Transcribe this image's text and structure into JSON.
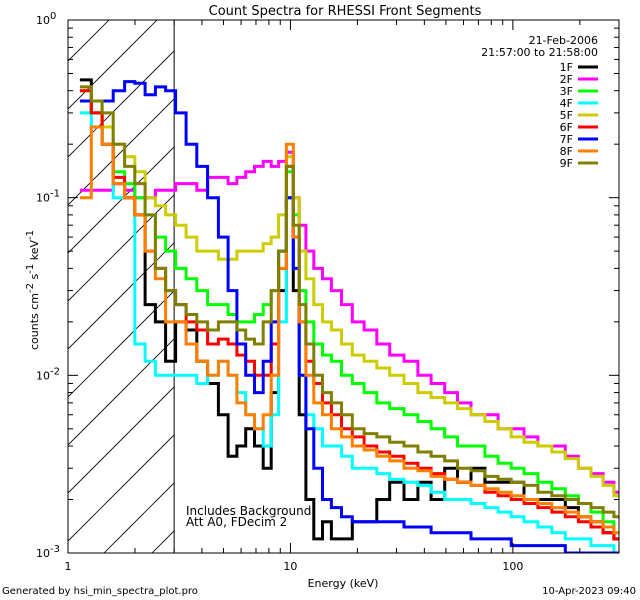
{
  "chart_data": {
    "type": "line",
    "title": "Count Spectra for RHESSI Front Segments",
    "xlabel": "Energy (keV)",
    "ylabel_text": "counts cm",
    "ylabel_sup1": "-2",
    "ylabel_mid": " s",
    "ylabel_sup2": "-1",
    "ylabel_tail": " keV",
    "ylabel_sup3": "-1",
    "xscale": "log",
    "yscale": "log",
    "xlim": [
      1,
      300
    ],
    "ylim": [
      0.001,
      1
    ],
    "x_ticks": [
      {
        "value": 1,
        "label": "1"
      },
      {
        "value": 10,
        "label": "10"
      },
      {
        "value": 100,
        "label": "100"
      }
    ],
    "y_ticks": [
      {
        "value": 1,
        "base": "10",
        "exp": "0"
      },
      {
        "value": 0.1,
        "base": "10",
        "exp": "-1"
      },
      {
        "value": 0.01,
        "base": "10",
        "exp": "-2"
      },
      {
        "value": 0.001,
        "base": "10",
        "exp": "-3"
      }
    ],
    "grid": false,
    "legend_position": "top-right",
    "info_date": "21-Feb-2006",
    "info_time": "21:57:00 to 21:58:00",
    "attenuator_boundary_keV": 3,
    "annotation_line1": "Includes Background",
    "annotation_line2": "Att A0, FDecim 2",
    "energy_bins": [
      1.2,
      1.35,
      1.5,
      1.7,
      1.9,
      2.1,
      2.35,
      2.6,
      2.9,
      3.2,
      3.6,
      4.0,
      4.5,
      5.0,
      5.5,
      6.0,
      6.6,
      7.2,
      7.9,
      8.5,
      9.2,
      10.0,
      10.6,
      11.3,
      12.2,
      13.3,
      14.6,
      16.0,
      18.0,
      20.0,
      23.0,
      26.0,
      30.0,
      35.0,
      40.0,
      46.0,
      53.0,
      60.0,
      70.0,
      80.0,
      92.0,
      105.0,
      120.0,
      140.0,
      160.0,
      185.0,
      210.0,
      240.0,
      270.0,
      300.0
    ],
    "series": [
      {
        "name": "1F",
        "color": "#000000",
        "values": [
          0.46,
          0.3,
          0.2,
          0.12,
          0.1,
          0.08,
          0.025,
          0.02,
          0.012,
          0.02,
          0.018,
          0.012,
          0.009,
          0.006,
          0.0035,
          0.004,
          0.005,
          0.004,
          0.003,
          0.008,
          0.03,
          0.1,
          0.03,
          0.006,
          0.002,
          0.0012,
          0.0015,
          0.0012,
          0.0012,
          0.0015,
          0.0015,
          0.002,
          0.0025,
          0.002,
          0.0025,
          0.002,
          0.003,
          0.0025,
          0.003,
          0.0025,
          0.0025,
          0.0025,
          0.002,
          0.002,
          0.002,
          0.0018,
          0.0016,
          0.0015,
          0.0013,
          0.0012
        ]
      },
      {
        "name": "2F",
        "color": "#ff00ff",
        "values": [
          0.11,
          0.11,
          0.11,
          0.12,
          0.11,
          0.1,
          0.1,
          0.11,
          0.11,
          0.12,
          0.12,
          0.11,
          0.13,
          0.13,
          0.12,
          0.13,
          0.14,
          0.15,
          0.16,
          0.15,
          0.16,
          0.18,
          0.1,
          0.07,
          0.05,
          0.04,
          0.035,
          0.03,
          0.025,
          0.02,
          0.018,
          0.015,
          0.013,
          0.012,
          0.01,
          0.009,
          0.008,
          0.007,
          0.006,
          0.006,
          0.005,
          0.005,
          0.0045,
          0.004,
          0.004,
          0.0035,
          0.003,
          0.0028,
          0.0025,
          0.0022
        ]
      },
      {
        "name": "3F",
        "color": "#00ff00",
        "values": [
          0.4,
          0.3,
          0.2,
          0.14,
          0.12,
          0.1,
          0.08,
          0.06,
          0.05,
          0.04,
          0.035,
          0.03,
          0.025,
          0.025,
          0.022,
          0.02,
          0.02,
          0.022,
          0.025,
          0.03,
          0.05,
          0.14,
          0.08,
          0.03,
          0.02,
          0.015,
          0.013,
          0.012,
          0.01,
          0.009,
          0.008,
          0.007,
          0.0065,
          0.006,
          0.0055,
          0.005,
          0.0045,
          0.004,
          0.004,
          0.0035,
          0.0032,
          0.003,
          0.0028,
          0.0025,
          0.0023,
          0.0021,
          0.0019,
          0.0017,
          0.0015,
          0.0013
        ]
      },
      {
        "name": "4F",
        "color": "#00ffff",
        "values": [
          0.3,
          0.25,
          0.2,
          0.1,
          0.1,
          0.015,
          0.012,
          0.01,
          0.01,
          0.01,
          0.01,
          0.009,
          0.01,
          0.012,
          0.01,
          0.008,
          0.006,
          0.005,
          0.004,
          0.006,
          0.02,
          0.1,
          0.04,
          0.01,
          0.006,
          0.005,
          0.004,
          0.004,
          0.0035,
          0.003,
          0.003,
          0.0028,
          0.0026,
          0.0025,
          0.0024,
          0.0022,
          0.002,
          0.002,
          0.0019,
          0.0018,
          0.0017,
          0.0016,
          0.0015,
          0.0014,
          0.0013,
          0.0012,
          0.0012,
          0.0011,
          0.0011,
          0.001
        ]
      },
      {
        "name": "5F",
        "color": "#cccc00",
        "values": [
          0.42,
          0.35,
          0.25,
          0.2,
          0.17,
          0.14,
          0.1,
          0.09,
          0.08,
          0.07,
          0.06,
          0.05,
          0.05,
          0.045,
          0.045,
          0.05,
          0.05,
          0.05,
          0.055,
          0.06,
          0.08,
          0.17,
          0.1,
          0.05,
          0.035,
          0.025,
          0.02,
          0.018,
          0.015,
          0.013,
          0.012,
          0.011,
          0.01,
          0.009,
          0.008,
          0.0075,
          0.007,
          0.0065,
          0.006,
          0.0055,
          0.005,
          0.0045,
          0.0042,
          0.004,
          0.0037,
          0.0034,
          0.003,
          0.0027,
          0.0024,
          0.0021
        ]
      },
      {
        "name": "6F",
        "color": "#ff0000",
        "values": [
          0.4,
          0.3,
          0.2,
          0.13,
          0.1,
          0.08,
          0.05,
          0.04,
          0.03,
          0.025,
          0.02,
          0.018,
          0.015,
          0.016,
          0.015,
          0.013,
          0.012,
          0.01,
          0.01,
          0.015,
          0.04,
          0.15,
          0.06,
          0.02,
          0.012,
          0.009,
          0.007,
          0.006,
          0.005,
          0.0045,
          0.004,
          0.0037,
          0.0035,
          0.0032,
          0.003,
          0.0028,
          0.0026,
          0.0025,
          0.0024,
          0.0022,
          0.0021,
          0.002,
          0.0019,
          0.0018,
          0.0017,
          0.0016,
          0.0015,
          0.0014,
          0.0013,
          0.0012
        ]
      },
      {
        "name": "7F",
        "color": "#0000ff",
        "values": [
          0.35,
          0.35,
          0.35,
          0.4,
          0.45,
          0.44,
          0.38,
          0.42,
          0.4,
          0.3,
          0.2,
          0.15,
          0.1,
          0.06,
          0.03,
          0.015,
          0.01,
          0.008,
          0.012,
          0.02,
          0.05,
          0.1,
          0.04,
          0.01,
          0.005,
          0.003,
          0.002,
          0.0018,
          0.0016,
          0.0015,
          0.0015,
          0.0015,
          0.0015,
          0.0014,
          0.0014,
          0.0013,
          0.0013,
          0.0013,
          0.0012,
          0.0012,
          0.0012,
          0.0011,
          0.0011,
          0.0011,
          0.0011,
          0.001,
          0.001,
          0.001,
          0.001,
          0.001
        ]
      },
      {
        "name": "8F",
        "color": "#ff8000",
        "values": [
          0.1,
          0.25,
          0.2,
          0.12,
          0.1,
          0.08,
          0.05,
          0.035,
          0.02,
          0.02,
          0.015,
          0.012,
          0.01,
          0.012,
          0.01,
          0.007,
          0.006,
          0.005,
          0.006,
          0.01,
          0.04,
          0.2,
          0.06,
          0.02,
          0.01,
          0.007,
          0.006,
          0.005,
          0.0045,
          0.004,
          0.0038,
          0.0035,
          0.0033,
          0.003,
          0.0029,
          0.0027,
          0.0026,
          0.0025,
          0.0024,
          0.0023,
          0.0022,
          0.0021,
          0.002,
          0.0019,
          0.0018,
          0.0017,
          0.0016,
          0.0015,
          0.0014,
          0.0013
        ]
      },
      {
        "name": "9F",
        "color": "#808000",
        "values": [
          0.42,
          0.35,
          0.3,
          0.2,
          0.15,
          0.12,
          0.08,
          0.04,
          0.03,
          0.025,
          0.022,
          0.02,
          0.018,
          0.02,
          0.02,
          0.018,
          0.016,
          0.015,
          0.02,
          0.03,
          0.05,
          0.15,
          0.07,
          0.025,
          0.015,
          0.01,
          0.008,
          0.007,
          0.006,
          0.005,
          0.0047,
          0.0045,
          0.0042,
          0.004,
          0.0037,
          0.0035,
          0.0033,
          0.003,
          0.0029,
          0.0027,
          0.0026,
          0.0025,
          0.0024,
          0.0022,
          0.0021,
          0.002,
          0.0019,
          0.0018,
          0.0017,
          0.0016
        ]
      }
    ]
  },
  "footer": {
    "left": "Generated by hsi_min_spectra_plot.pro",
    "right": "10-Apr-2023 09:40"
  }
}
